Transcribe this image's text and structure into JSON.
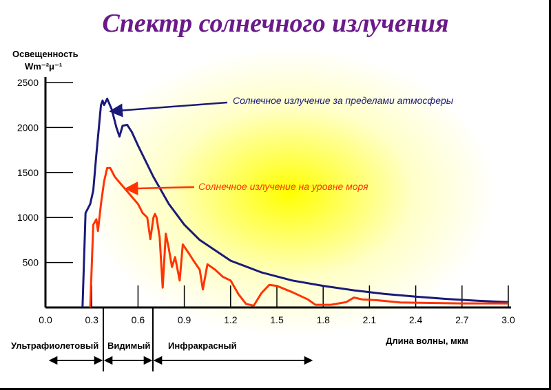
{
  "title": "Спектр солнечного излучения",
  "chart_data": {
    "type": "line",
    "title": "Спектр солнечного излучения",
    "ylabel": "Освещенность",
    "ylabel_unit": "Wm⁻²μ⁻¹",
    "xlabel": "Длина волны, мкм",
    "xlim": [
      0.0,
      3.0
    ],
    "ylim": [
      0,
      2500
    ],
    "x_ticks": [
      "0.0",
      "0.3",
      "0.6",
      "0.9",
      "1.2",
      "1.5",
      "1.8",
      "2.1",
      "2.4",
      "2.7",
      "3.0"
    ],
    "y_ticks": [
      "500",
      "1000",
      "1500",
      "2000",
      "2500"
    ],
    "grid": false,
    "series": [
      {
        "name": "Солнечное излучение за пределами атмосферы",
        "color": "#1a1a7a",
        "points": [
          [
            0.24,
            0
          ],
          [
            0.26,
            1050
          ],
          [
            0.29,
            1150
          ],
          [
            0.31,
            1300
          ],
          [
            0.33,
            1700
          ],
          [
            0.36,
            2250
          ],
          [
            0.37,
            2300
          ],
          [
            0.38,
            2250
          ],
          [
            0.4,
            2320
          ],
          [
            0.43,
            2200
          ],
          [
            0.46,
            2000
          ],
          [
            0.48,
            1900
          ],
          [
            0.5,
            2020
          ],
          [
            0.53,
            2030
          ],
          [
            0.56,
            1950
          ],
          [
            0.6,
            1800
          ],
          [
            0.7,
            1450
          ],
          [
            0.8,
            1150
          ],
          [
            0.9,
            920
          ],
          [
            1.0,
            750
          ],
          [
            1.2,
            520
          ],
          [
            1.4,
            390
          ],
          [
            1.6,
            300
          ],
          [
            1.8,
            240
          ],
          [
            2.0,
            190
          ],
          [
            2.2,
            150
          ],
          [
            2.4,
            120
          ],
          [
            2.6,
            95
          ],
          [
            2.8,
            75
          ],
          [
            3.0,
            60
          ]
        ]
      },
      {
        "name": "Солнечное излучение на уровне моря",
        "color": "#ff3300",
        "points": [
          [
            0.29,
            0
          ],
          [
            0.31,
            920
          ],
          [
            0.33,
            980
          ],
          [
            0.34,
            850
          ],
          [
            0.36,
            1150
          ],
          [
            0.38,
            1400
          ],
          [
            0.4,
            1550
          ],
          [
            0.42,
            1550
          ],
          [
            0.45,
            1450
          ],
          [
            0.5,
            1350
          ],
          [
            0.55,
            1250
          ],
          [
            0.6,
            1150
          ],
          [
            0.63,
            1050
          ],
          [
            0.66,
            1000
          ],
          [
            0.68,
            760
          ],
          [
            0.7,
            1000
          ],
          [
            0.71,
            1040
          ],
          [
            0.72,
            1000
          ],
          [
            0.74,
            780
          ],
          [
            0.76,
            220
          ],
          [
            0.78,
            820
          ],
          [
            0.8,
            650
          ],
          [
            0.82,
            450
          ],
          [
            0.84,
            560
          ],
          [
            0.87,
            300
          ],
          [
            0.89,
            700
          ],
          [
            0.93,
            600
          ],
          [
            0.96,
            520
          ],
          [
            1.0,
            420
          ],
          [
            1.02,
            200
          ],
          [
            1.05,
            480
          ],
          [
            1.1,
            420
          ],
          [
            1.15,
            340
          ],
          [
            1.2,
            300
          ],
          [
            1.25,
            150
          ],
          [
            1.3,
            40
          ],
          [
            1.35,
            20
          ],
          [
            1.4,
            160
          ],
          [
            1.45,
            250
          ],
          [
            1.5,
            240
          ],
          [
            1.6,
            170
          ],
          [
            1.7,
            90
          ],
          [
            1.75,
            30
          ],
          [
            1.85,
            30
          ],
          [
            1.95,
            60
          ],
          [
            2.0,
            110
          ],
          [
            2.05,
            90
          ],
          [
            2.15,
            80
          ],
          [
            2.3,
            55
          ],
          [
            2.5,
            50
          ],
          [
            2.7,
            45
          ],
          [
            2.9,
            45
          ],
          [
            3.0,
            45
          ]
        ]
      }
    ],
    "annotations": [
      {
        "text": "Солнечное излучение за пределами атмосферы",
        "color": "#1a1a7a",
        "series": 0
      },
      {
        "text": "Солнечное излучение на уровне моря",
        "color": "#ff3300",
        "series": 1
      }
    ],
    "regions": [
      {
        "label": "Ультрафиолетовый",
        "from": 0.0,
        "to": 0.38
      },
      {
        "label": "Видимый",
        "from": 0.38,
        "to": 0.72
      },
      {
        "label": "Инфракрасный",
        "from": 0.72,
        "to": 1.75
      }
    ]
  }
}
